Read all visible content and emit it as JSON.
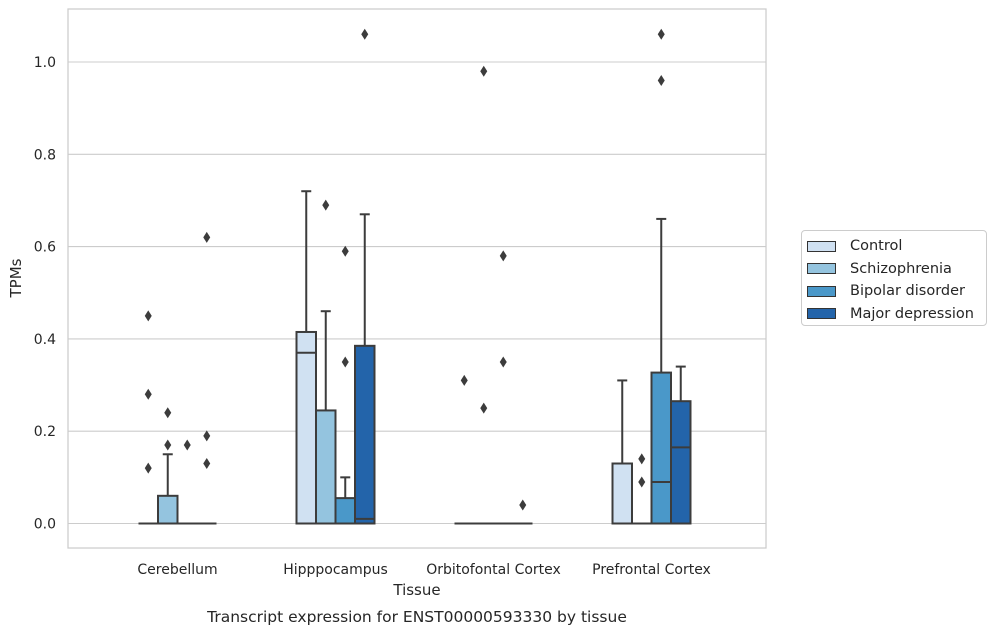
{
  "chart_data": {
    "type": "box",
    "title": "Transcript expression for ENST00000593330 by tissue",
    "xlabel": "Tissue",
    "ylabel": "TPMs",
    "ylim": [
      -0.05,
      1.12
    ],
    "yticks": [
      "0.0",
      "0.2",
      "0.4",
      "0.6",
      "0.8",
      "1.0"
    ],
    "grid": true,
    "legend_position": "right",
    "categories": [
      "Cerebellum",
      "Hipppocampus",
      "Orbitofontal Cortex",
      "Prefrontal Cortex"
    ],
    "series": [
      {
        "name": "Control",
        "color": "#d0e1f2",
        "boxes": [
          {
            "q1": 0,
            "median": 0,
            "q3": 0,
            "whisker_low": 0,
            "whisker_high": 0,
            "outliers": [
              0.12,
              0.28,
              0.45
            ]
          },
          {
            "q1": 0,
            "median": 0.37,
            "q3": 0.415,
            "whisker_low": 0,
            "whisker_high": 0.72,
            "outliers": []
          },
          {
            "q1": 0,
            "median": 0,
            "q3": 0,
            "whisker_low": 0,
            "whisker_high": 0,
            "outliers": [
              0.31
            ]
          },
          {
            "q1": 0,
            "median": 0,
            "q3": 0.13,
            "whisker_low": 0,
            "whisker_high": 0.31,
            "outliers": []
          }
        ]
      },
      {
        "name": "Schizophrenia",
        "color": "#94c4df",
        "boxes": [
          {
            "q1": 0,
            "median": 0,
            "q3": 0.06,
            "whisker_low": 0,
            "whisker_high": 0.15,
            "outliers": [
              0.17,
              0.24
            ]
          },
          {
            "q1": 0,
            "median": 0,
            "q3": 0.245,
            "whisker_low": 0,
            "whisker_high": 0.46,
            "outliers": [
              0.69
            ]
          },
          {
            "q1": 0,
            "median": 0,
            "q3": 0,
            "whisker_low": 0,
            "whisker_high": 0,
            "outliers": [
              0.25,
              0.98
            ]
          },
          {
            "q1": 0,
            "median": 0,
            "q3": 0,
            "whisker_low": 0,
            "whisker_high": 0,
            "outliers": [
              0.09,
              0.14
            ]
          }
        ]
      },
      {
        "name": "Bipolar disorder",
        "color": "#4a98c9",
        "boxes": [
          {
            "q1": 0,
            "median": 0,
            "q3": 0,
            "whisker_low": 0,
            "whisker_high": 0,
            "outliers": [
              0.17
            ]
          },
          {
            "q1": 0,
            "median": 0,
            "q3": 0.055,
            "whisker_low": 0,
            "whisker_high": 0.1,
            "outliers": [
              0.35,
              0.59
            ]
          },
          {
            "q1": 0,
            "median": 0,
            "q3": 0,
            "whisker_low": 0,
            "whisker_high": 0,
            "outliers": [
              0.35,
              0.58
            ]
          },
          {
            "q1": 0,
            "median": 0.09,
            "q3": 0.327,
            "whisker_low": 0,
            "whisker_high": 0.66,
            "outliers": [
              0.96,
              1.06
            ]
          }
        ]
      },
      {
        "name": "Major depression",
        "color": "#2364aa",
        "boxes": [
          {
            "q1": 0,
            "median": 0,
            "q3": 0,
            "whisker_low": 0,
            "whisker_high": 0,
            "outliers": [
              0.13,
              0.19,
              0.62
            ]
          },
          {
            "q1": 0,
            "median": 0.01,
            "q3": 0.385,
            "whisker_low": 0,
            "whisker_high": 0.67,
            "outliers": [
              1.06
            ]
          },
          {
            "q1": 0,
            "median": 0,
            "q3": 0,
            "whisker_low": 0,
            "whisker_high": 0,
            "outliers": [
              0.04
            ]
          },
          {
            "q1": 0,
            "median": 0.165,
            "q3": 0.265,
            "whisker_low": 0,
            "whisker_high": 0.34,
            "outliers": []
          }
        ]
      }
    ]
  }
}
